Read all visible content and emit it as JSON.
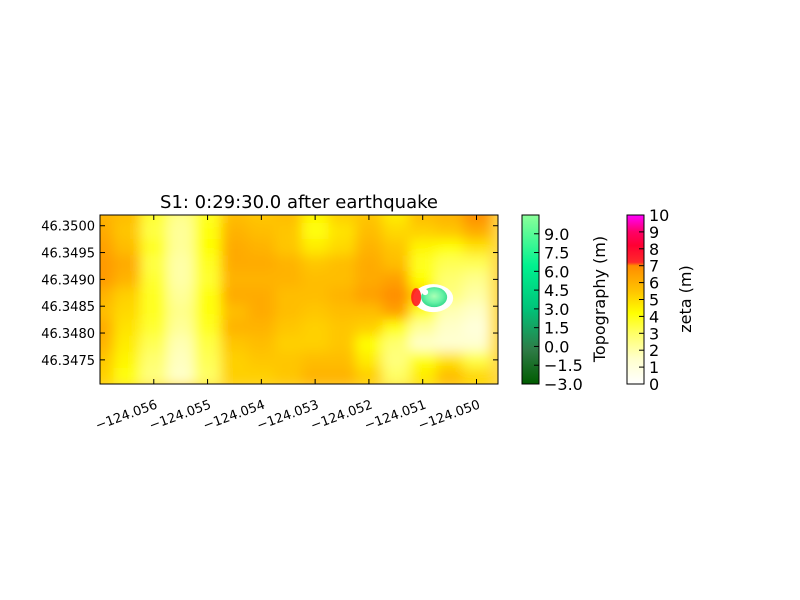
{
  "chart_data": {
    "type": "heatmap",
    "title": "S1: 0:29:30.0 after earthquake",
    "xlabel": "",
    "ylabel": "",
    "xlim": [
      -124.057,
      -124.0496
    ],
    "ylim": [
      46.34705,
      46.3502
    ],
    "x_ticks": [
      {
        "value": -124.056,
        "label": "−124.056"
      },
      {
        "value": -124.055,
        "label": "−124.055"
      },
      {
        "value": -124.054,
        "label": "−124.054"
      },
      {
        "value": -124.053,
        "label": "−124.053"
      },
      {
        "value": -124.052,
        "label": "−124.052"
      },
      {
        "value": -124.051,
        "label": "−124.051"
      },
      {
        "value": -124.05,
        "label": "−124.050"
      }
    ],
    "y_ticks": [
      {
        "value": 46.3475,
        "label": "46.3475"
      },
      {
        "value": 46.348,
        "label": "46.3480"
      },
      {
        "value": 46.3485,
        "label": "46.3485"
      },
      {
        "value": 46.349,
        "label": "46.3490"
      },
      {
        "value": 46.3495,
        "label": "46.3495"
      },
      {
        "value": 46.35,
        "label": "46.3500"
      }
    ],
    "grid": false,
    "colorbars": [
      {
        "name": "topography",
        "label": "Topography (m)",
        "range": [
          -3.0,
          10.5
        ],
        "ticks": [
          {
            "value": -3.0,
            "label": "−3.0"
          },
          {
            "value": -1.5,
            "label": "−1.5"
          },
          {
            "value": 0.0,
            "label": "0.0"
          },
          {
            "value": 1.5,
            "label": "1.5"
          },
          {
            "value": 3.0,
            "label": "3.0"
          },
          {
            "value": 4.5,
            "label": "4.5"
          },
          {
            "value": 6.0,
            "label": "6.0"
          },
          {
            "value": 7.5,
            "label": "7.5"
          },
          {
            "value": 9.0,
            "label": "9.0"
          }
        ],
        "colors": [
          "#006400",
          "#2e8b57",
          "#00e38c",
          "#00ff99",
          "#88ff99"
        ]
      },
      {
        "name": "zeta",
        "label": "zeta (m)",
        "range": [
          0,
          10
        ],
        "ticks": [
          {
            "value": 0,
            "label": "0"
          },
          {
            "value": 1,
            "label": "1"
          },
          {
            "value": 2,
            "label": "2"
          },
          {
            "value": 3,
            "label": "3"
          },
          {
            "value": 4,
            "label": "4"
          },
          {
            "value": 5,
            "label": "5"
          },
          {
            "value": 6,
            "label": "6"
          },
          {
            "value": 7,
            "label": "7"
          },
          {
            "value": 8,
            "label": "8"
          },
          {
            "value": 9,
            "label": "9"
          },
          {
            "value": 10,
            "label": "10"
          }
        ],
        "colors": [
          "#ffffff",
          "#ffffa8",
          "#ffff00",
          "#ffc000",
          "#ff8c00",
          "#ff0033",
          "#ff00ff"
        ]
      }
    ],
    "zeta_grid": {
      "x": [
        -124.057,
        -124.0565,
        -124.056,
        -124.0555,
        -124.055,
        -124.0545,
        -124.054,
        -124.0535,
        -124.053,
        -124.0525,
        -124.052,
        -124.0515,
        -124.051,
        -124.0505,
        -124.05
      ],
      "y": [
        46.3502,
        46.3499,
        46.3496,
        46.3493,
        46.349,
        46.3487,
        46.3484,
        46.3481,
        46.3478,
        46.3475,
        46.3472
      ],
      "values": [
        [
          5.6,
          5.4,
          3.4,
          2.2,
          3.6,
          5.4,
          5.2,
          5.4,
          4.2,
          5.0,
          5.2,
          4.4,
          5.4,
          5.6,
          6.6
        ],
        [
          5.8,
          5.2,
          3.2,
          2.0,
          3.8,
          5.6,
          5.4,
          5.2,
          3.8,
          4.6,
          5.4,
          4.8,
          5.0,
          5.2,
          5.8
        ],
        [
          6.0,
          5.4,
          3.6,
          2.0,
          4.0,
          5.8,
          5.6,
          5.2,
          4.4,
          4.8,
          5.6,
          5.2,
          4.2,
          4.0,
          4.6
        ],
        [
          6.2,
          5.8,
          3.2,
          1.8,
          3.6,
          5.8,
          5.8,
          5.6,
          5.2,
          5.4,
          5.8,
          5.4,
          3.6,
          3.0,
          3.0
        ],
        [
          6.2,
          5.6,
          3.4,
          1.8,
          3.4,
          5.6,
          5.6,
          5.6,
          5.4,
          5.4,
          5.8,
          6.0,
          4.0,
          2.6,
          2.2
        ],
        [
          5.6,
          5.0,
          3.6,
          2.0,
          3.8,
          5.8,
          5.8,
          5.4,
          5.4,
          5.6,
          6.0,
          6.6,
          5.0,
          2.4,
          1.8
        ],
        [
          5.4,
          4.8,
          3.6,
          2.2,
          3.8,
          5.4,
          5.8,
          5.4,
          5.2,
          5.4,
          5.4,
          6.0,
          3.6,
          1.6,
          1.2
        ],
        [
          5.8,
          4.6,
          3.4,
          2.0,
          3.6,
          5.6,
          5.6,
          5.2,
          5.0,
          5.2,
          5.0,
          3.8,
          2.0,
          1.2,
          0.8
        ],
        [
          5.6,
          4.4,
          3.0,
          1.6,
          3.2,
          5.2,
          5.4,
          5.0,
          5.0,
          5.2,
          4.0,
          2.6,
          1.2,
          1.0,
          1.0
        ],
        [
          5.2,
          4.2,
          2.6,
          1.4,
          3.0,
          5.0,
          5.2,
          5.2,
          5.4,
          5.4,
          4.4,
          2.4,
          3.8,
          4.6,
          3.2
        ],
        [
          5.0,
          3.8,
          2.4,
          1.2,
          2.8,
          5.0,
          5.0,
          5.2,
          5.6,
          5.6,
          5.0,
          2.8,
          4.4,
          5.4,
          4.8
        ]
      ]
    },
    "topography_patch": {
      "center": [
        -124.05075,
        46.34865
      ],
      "peak_m": 8.5,
      "description": ""
    }
  }
}
